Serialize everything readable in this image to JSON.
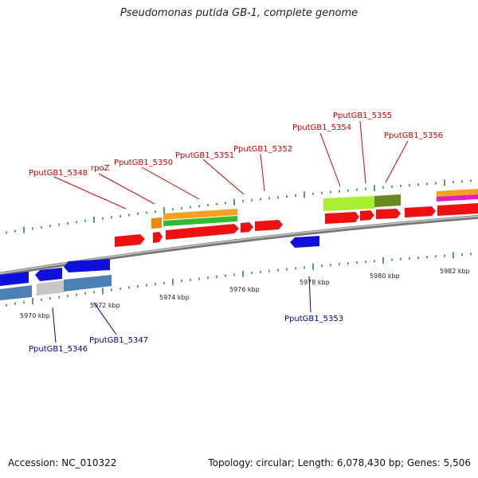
{
  "title": "Pseudomonas putida GB-1, complete genome",
  "footer": {
    "accession": "Accession: NC_010322",
    "summary": "Topology: circular; Length: 6,078,430 bp; Genes: 5,506"
  },
  "colors": {
    "backbone": "#8a8a8a",
    "tick": "#2e8b2e",
    "label_forward": "#cc0000",
    "label_reverse": "#000099"
  },
  "scale_labels": [
    "5970 kbp",
    "5972 kbp",
    "5974 kbp",
    "5976 kbp",
    "5978 kbp",
    "5980 kbp",
    "5982 kbp"
  ],
  "gene_labels_forward": [
    "PputGB1_5348",
    "rpoZ",
    "PputGB1_5350",
    "PputGB1_5351",
    "PputGB1_5352",
    "PputGB1_5354",
    "PputGB1_5355",
    "PputGB1_5356"
  ],
  "gene_labels_reverse": [
    "PputGB1_5346",
    "PputGB1_5347",
    "PputGB1_5353"
  ]
}
